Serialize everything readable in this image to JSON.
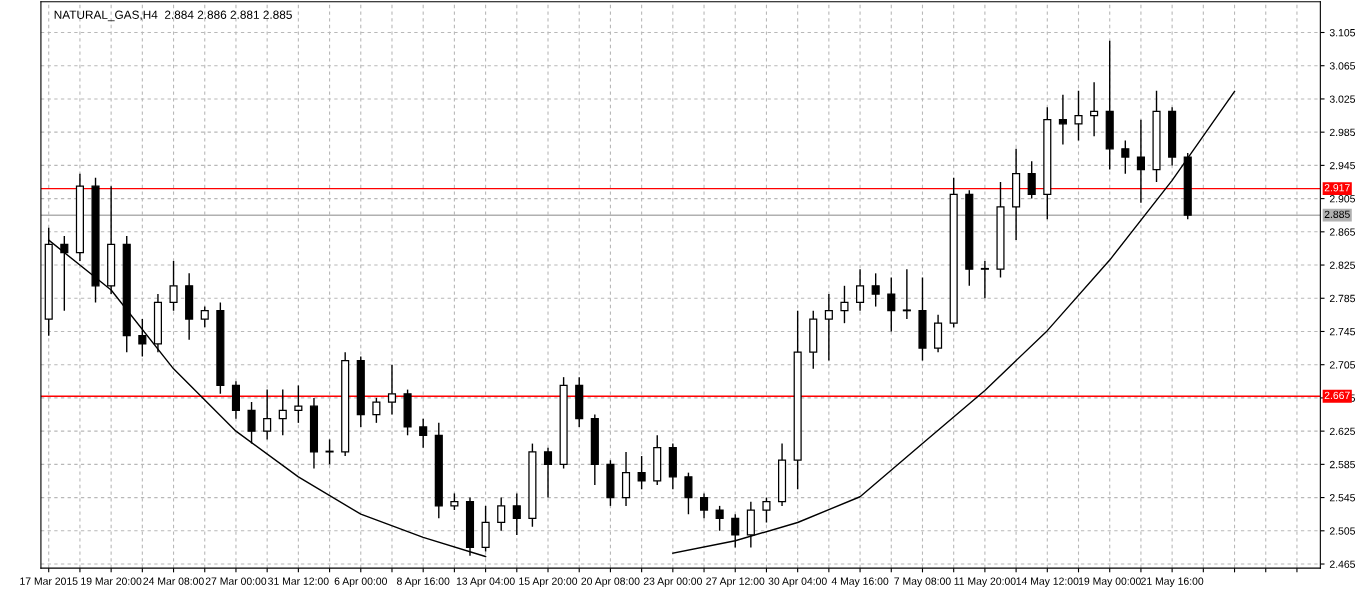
{
  "chart_data": {
    "type": "candlestick",
    "title": "NATURAL_GAS,H4  2.884 2.886 2.881 2.885",
    "categories": [
      "17 Mar 2015",
      null,
      null,
      null,
      "19 Mar 20:00",
      null,
      null,
      null,
      "24 Mar 08:00",
      null,
      null,
      null,
      "27 Mar 00:00",
      null,
      null,
      null,
      "31 Mar 12:00",
      null,
      null,
      null,
      "6 Apr 00:00",
      null,
      null,
      null,
      "8 Apr 16:00",
      null,
      null,
      null,
      "13 Apr 04:00",
      null,
      null,
      null,
      "15 Apr 20:00",
      null,
      null,
      null,
      "20 Apr 08:00",
      null,
      null,
      null,
      "23 Apr 00:00",
      null,
      null,
      null,
      "27 Apr 12:00",
      null,
      null,
      null,
      "30 Apr 04:00",
      null,
      null,
      null,
      "4 May 16:00",
      null,
      null,
      null,
      "7 May 08:00",
      null,
      null,
      null,
      "11 May 20:00",
      null,
      null,
      null,
      "14 May 12:00",
      null,
      null,
      null,
      "19 May 00:00",
      null,
      null,
      null,
      "21 May 16:00",
      null,
      null,
      null,
      null,
      null,
      null,
      null,
      null,
      null
    ],
    "ohlc": [
      [
        2.76,
        2.87,
        2.74,
        2.85
      ],
      [
        2.85,
        2.86,
        2.77,
        2.84
      ],
      [
        2.84,
        2.935,
        2.83,
        2.92
      ],
      [
        2.92,
        2.93,
        2.78,
        2.8
      ],
      [
        2.8,
        2.92,
        2.79,
        2.85
      ],
      [
        2.85,
        2.86,
        2.72,
        2.74
      ],
      [
        2.74,
        2.76,
        2.715,
        2.73
      ],
      [
        2.73,
        2.79,
        2.72,
        2.78
      ],
      [
        2.78,
        2.83,
        2.77,
        2.8
      ],
      [
        2.8,
        2.815,
        2.735,
        2.76
      ],
      [
        2.76,
        2.775,
        2.75,
        2.77
      ],
      [
        2.77,
        2.78,
        2.67,
        2.68
      ],
      [
        2.68,
        2.685,
        2.64,
        2.65
      ],
      [
        2.65,
        2.66,
        2.61,
        2.625
      ],
      [
        2.625,
        2.675,
        2.615,
        2.64
      ],
      [
        2.64,
        2.675,
        2.62,
        2.65
      ],
      [
        2.65,
        2.68,
        2.635,
        2.655
      ],
      [
        2.655,
        2.665,
        2.58,
        2.6
      ],
      [
        2.6,
        2.615,
        2.585,
        2.6
      ],
      [
        2.6,
        2.72,
        2.595,
        2.71
      ],
      [
        2.71,
        2.715,
        2.63,
        2.645
      ],
      [
        2.645,
        2.665,
        2.635,
        2.66
      ],
      [
        2.66,
        2.705,
        2.645,
        2.67
      ],
      [
        2.67,
        2.675,
        2.62,
        2.63
      ],
      [
        2.63,
        2.64,
        2.605,
        2.62
      ],
      [
        2.62,
        2.635,
        2.52,
        2.535
      ],
      [
        2.535,
        2.55,
        2.53,
        2.54
      ],
      [
        2.54,
        2.545,
        2.475,
        2.485
      ],
      [
        2.485,
        2.535,
        2.48,
        2.515
      ],
      [
        2.515,
        2.545,
        2.505,
        2.535
      ],
      [
        2.535,
        2.55,
        2.5,
        2.52
      ],
      [
        2.52,
        2.61,
        2.51,
        2.6
      ],
      [
        2.6,
        2.605,
        2.545,
        2.585
      ],
      [
        2.585,
        2.69,
        2.58,
        2.68
      ],
      [
        2.68,
        2.69,
        2.63,
        2.64
      ],
      [
        2.64,
        2.645,
        2.56,
        2.585
      ],
      [
        2.585,
        2.59,
        2.535,
        2.545
      ],
      [
        2.545,
        2.6,
        2.535,
        2.575
      ],
      [
        2.575,
        2.595,
        2.555,
        2.565
      ],
      [
        2.565,
        2.62,
        2.56,
        2.605
      ],
      [
        2.605,
        2.61,
        2.555,
        2.57
      ],
      [
        2.57,
        2.575,
        2.525,
        2.545
      ],
      [
        2.545,
        2.55,
        2.52,
        2.53
      ],
      [
        2.53,
        2.535,
        2.505,
        2.52
      ],
      [
        2.52,
        2.525,
        2.485,
        2.5
      ],
      [
        2.5,
        2.54,
        2.485,
        2.53
      ],
      [
        2.53,
        2.545,
        2.515,
        2.54
      ],
      [
        2.54,
        2.61,
        2.535,
        2.59
      ],
      [
        2.59,
        2.77,
        2.555,
        2.72
      ],
      [
        2.72,
        2.77,
        2.7,
        2.76
      ],
      [
        2.76,
        2.79,
        2.71,
        2.77
      ],
      [
        2.77,
        2.8,
        2.755,
        2.78
      ],
      [
        2.78,
        2.82,
        2.77,
        2.8
      ],
      [
        2.8,
        2.815,
        2.775,
        2.79
      ],
      [
        2.79,
        2.81,
        2.745,
        2.77
      ],
      [
        2.77,
        2.82,
        2.76,
        2.77
      ],
      [
        2.77,
        2.81,
        2.71,
        2.725
      ],
      [
        2.725,
        2.765,
        2.72,
        2.755
      ],
      [
        2.755,
        2.93,
        2.75,
        2.91
      ],
      [
        2.91,
        2.915,
        2.8,
        2.82
      ],
      [
        2.82,
        2.83,
        2.785,
        2.82
      ],
      [
        2.82,
        2.925,
        2.81,
        2.895
      ],
      [
        2.895,
        2.965,
        2.855,
        2.935
      ],
      [
        2.935,
        2.95,
        2.905,
        2.91
      ],
      [
        2.91,
        3.015,
        2.88,
        3.0
      ],
      [
        3.0,
        3.03,
        2.97,
        2.995
      ],
      [
        2.995,
        3.035,
        2.975,
        3.005
      ],
      [
        3.005,
        3.045,
        2.98,
        3.01
      ],
      [
        3.01,
        3.095,
        2.94,
        2.965
      ],
      [
        2.965,
        2.975,
        2.935,
        2.955
      ],
      [
        2.955,
        3.0,
        2.9,
        2.94
      ],
      [
        2.94,
        3.035,
        2.925,
        3.01
      ],
      [
        3.01,
        3.015,
        2.945,
        2.955
      ],
      [
        2.955,
        2.96,
        2.88,
        2.885
      ],
      null,
      null,
      null,
      null,
      null,
      null,
      null,
      null
    ],
    "series": [
      {
        "type": "line",
        "color": "#000000",
        "values": [
          2.855,
          null,
          null,
          null,
          2.795,
          null,
          null,
          null,
          2.7,
          null,
          null,
          null,
          2.625,
          null,
          null,
          null,
          2.57,
          null,
          null,
          null,
          2.525,
          null,
          null,
          null,
          2.497,
          null,
          null,
          null,
          2.474,
          null,
          null,
          null,
          null,
          null,
          null,
          null,
          null,
          null,
          null,
          null,
          2.478,
          null,
          null,
          null,
          2.493,
          null,
          null,
          null,
          2.515,
          null,
          null,
          null,
          2.546,
          null,
          null,
          null,
          2.61,
          null,
          null,
          null,
          2.674,
          null,
          null,
          null,
          2.746,
          null,
          null,
          null,
          2.831,
          null,
          null,
          null,
          2.927,
          null,
          null,
          null,
          3.034,
          null,
          null,
          null,
          null,
          null
        ]
      }
    ],
    "ylim": [
      2.46,
      3.142
    ],
    "yticks": [
      2.465,
      2.505,
      2.545,
      2.585,
      2.625,
      2.665,
      2.705,
      2.745,
      2.785,
      2.825,
      2.865,
      2.905,
      2.945,
      2.985,
      3.025,
      3.065,
      3.105
    ],
    "ref_lines": [
      {
        "axis": "y",
        "value": 2.917,
        "label": "2.917",
        "color": "#ff0000"
      },
      {
        "axis": "y",
        "value": 2.667,
        "label": "2.667",
        "color": "#ff0000"
      },
      {
        "axis": "y",
        "value": 2.885,
        "label": "2.885",
        "color": "#b0b0b0"
      }
    ],
    "grid": true
  }
}
